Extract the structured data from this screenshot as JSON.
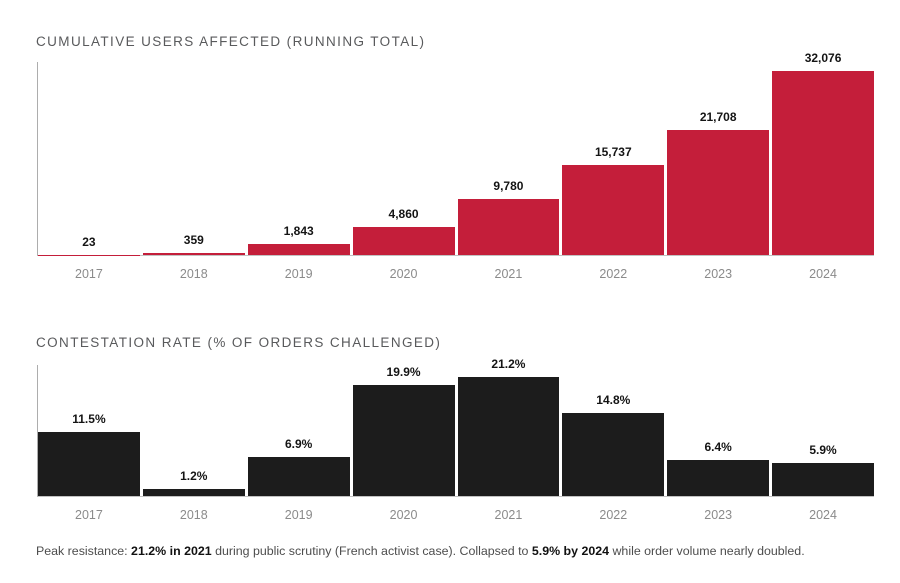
{
  "chart_data": [
    {
      "type": "bar",
      "title": "CUMULATIVE USERS AFFECTED (RUNNING TOTAL)",
      "categories": [
        "2017",
        "2018",
        "2019",
        "2020",
        "2021",
        "2022",
        "2023",
        "2024"
      ],
      "values": [
        23,
        359,
        1843,
        4860,
        9780,
        15737,
        21708,
        32076
      ],
      "value_labels": [
        "23",
        "359",
        "1,843",
        "4,860",
        "9,780",
        "15,737",
        "21,708",
        "32,076"
      ],
      "bar_color": "#c41e3a",
      "xlabel": "",
      "ylabel": "",
      "ylim": [
        0,
        33600
      ],
      "grid": false,
      "legend": "none"
    },
    {
      "type": "bar",
      "title": "CONTESTATION RATE (% OF ORDERS CHALLENGED)",
      "categories": [
        "2017",
        "2018",
        "2019",
        "2020",
        "2021",
        "2022",
        "2023",
        "2024"
      ],
      "values": [
        11.5,
        1.2,
        6.9,
        19.9,
        21.2,
        14.8,
        6.4,
        5.9
      ],
      "value_labels": [
        "11.5%",
        "1.2%",
        "6.9%",
        "19.9%",
        "21.2%",
        "14.8%",
        "6.4%",
        "5.9%"
      ],
      "bar_color": "#1c1c1c",
      "xlabel": "",
      "ylabel": "",
      "ylim": [
        0,
        23.4
      ],
      "grid": false,
      "legend": "none"
    }
  ],
  "footer": {
    "segments": [
      {
        "text": "Peak resistance: ",
        "bold": false
      },
      {
        "text": "21.2% in 2021",
        "bold": true
      },
      {
        "text": " during public scrutiny (French activist case). Collapsed to ",
        "bold": false
      },
      {
        "text": "5.9% by 2024",
        "bold": true
      },
      {
        "text": " while order volume nearly doubled.",
        "bold": false
      }
    ]
  },
  "colors": {
    "background": "#ffffff",
    "users_bar": "#c41e3a",
    "contest_bar": "#1c1c1c",
    "title_text": "#595a5c",
    "axis_line": "#adadad",
    "year_label": "#8b8b8b",
    "value_label": "#141414",
    "footer_text": "#4d4d4d",
    "footer_bold": "#111111"
  }
}
